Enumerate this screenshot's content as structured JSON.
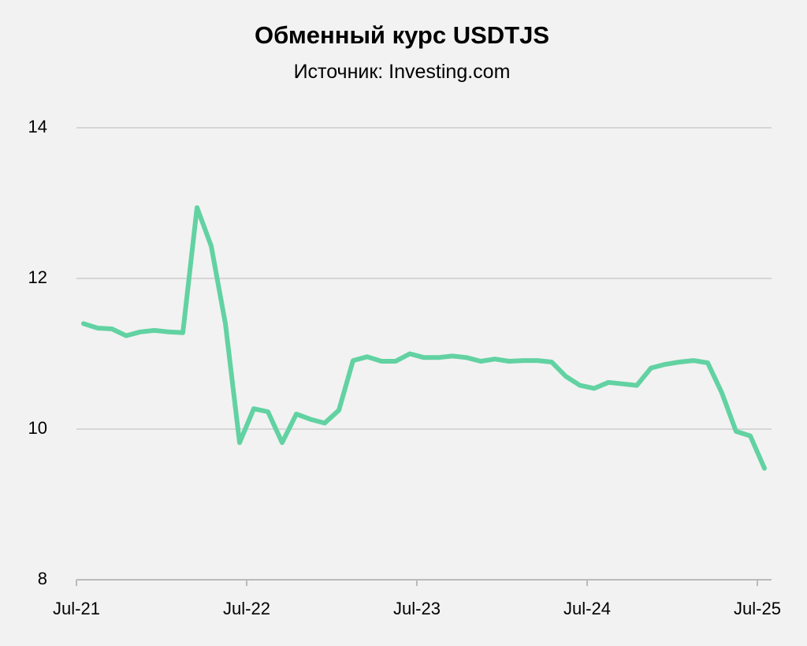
{
  "chart_data": {
    "type": "line",
    "title": "Обменный курс USDTJS",
    "subtitle": "Источник: Investing.com",
    "categories": [
      "Jul-21",
      null,
      null,
      null,
      null,
      null,
      null,
      null,
      null,
      null,
      null,
      null,
      "Jul-22",
      null,
      null,
      null,
      null,
      null,
      null,
      null,
      null,
      null,
      null,
      null,
      "Jul-23",
      null,
      null,
      null,
      null,
      null,
      null,
      null,
      null,
      null,
      null,
      null,
      "Jul-24",
      null,
      null,
      null,
      null,
      null,
      null,
      null,
      null,
      null,
      null,
      null,
      "Jul-25"
    ],
    "values": [
      11.4,
      11.34,
      11.33,
      11.24,
      11.29,
      11.31,
      11.29,
      11.28,
      12.94,
      12.43,
      11.4,
      9.82,
      10.27,
      10.23,
      9.82,
      10.2,
      10.13,
      10.08,
      10.25,
      10.91,
      10.96,
      10.9,
      10.9,
      11.0,
      10.95,
      10.95,
      10.97,
      10.95,
      10.9,
      10.93,
      10.9,
      10.91,
      10.91,
      10.89,
      10.7,
      10.58,
      10.54,
      10.62,
      10.6,
      10.58,
      10.81,
      10.86,
      10.89,
      10.91,
      10.88,
      10.48,
      9.97,
      9.91,
      9.48
    ],
    "color": "#62d2a2",
    "ylim": [
      8,
      14
    ],
    "yticks": [
      8,
      10,
      12,
      14
    ],
    "grid": true
  }
}
